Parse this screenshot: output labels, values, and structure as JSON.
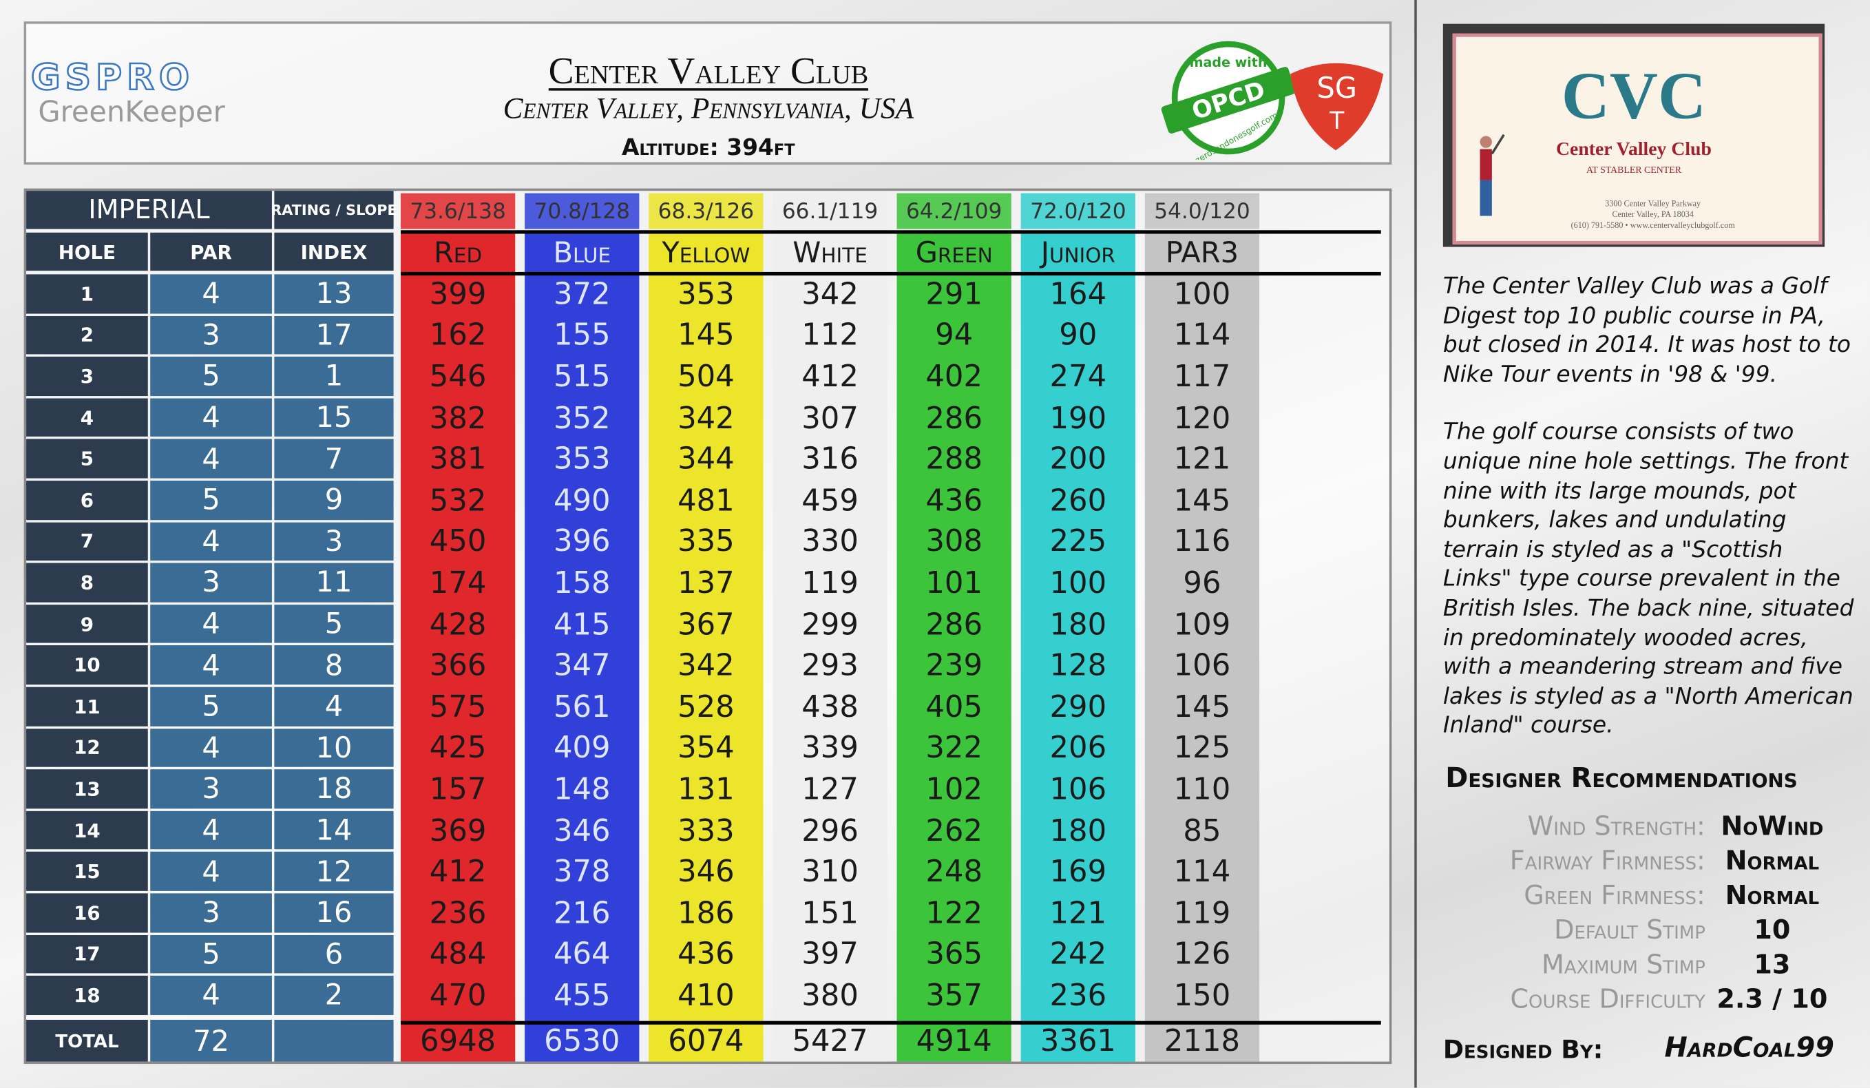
{
  "header": {
    "logo_title": "GSPRO",
    "logo_subtitle": "GreenKeeper",
    "title": "Center Valley Club",
    "location": "Center Valley, Pennsylvania, USA",
    "altitude": "Altitude: 394ft",
    "badge_top": "made with",
    "badge_main": "OPCD",
    "badge_url": "zerosandonesgolf.com",
    "sgt_top": "SG",
    "sgt_bottom": "T"
  },
  "table": {
    "system": "IMPERIAL",
    "rating_label": "RATING / SLOPE",
    "columns": [
      "HOLE",
      "PAR",
      "INDEX"
    ],
    "total_label": "TOTAL",
    "par_total": 72,
    "holes": [
      {
        "hole": 1,
        "par": 4,
        "index": 13
      },
      {
        "hole": 2,
        "par": 3,
        "index": 17
      },
      {
        "hole": 3,
        "par": 5,
        "index": 1
      },
      {
        "hole": 4,
        "par": 4,
        "index": 15
      },
      {
        "hole": 5,
        "par": 4,
        "index": 7
      },
      {
        "hole": 6,
        "par": 5,
        "index": 9
      },
      {
        "hole": 7,
        "par": 4,
        "index": 3
      },
      {
        "hole": 8,
        "par": 3,
        "index": 11
      },
      {
        "hole": 9,
        "par": 4,
        "index": 5
      },
      {
        "hole": 10,
        "par": 4,
        "index": 8
      },
      {
        "hole": 11,
        "par": 5,
        "index": 4
      },
      {
        "hole": 12,
        "par": 4,
        "index": 10
      },
      {
        "hole": 13,
        "par": 3,
        "index": 18
      },
      {
        "hole": 14,
        "par": 4,
        "index": 14
      },
      {
        "hole": 15,
        "par": 4,
        "index": 12
      },
      {
        "hole": 16,
        "par": 3,
        "index": 16
      },
      {
        "hole": 17,
        "par": 5,
        "index": 6
      },
      {
        "hole": 18,
        "par": 4,
        "index": 2
      }
    ],
    "tees": [
      {
        "name": "Red",
        "rating": "73.6/138",
        "color": "#e0282c",
        "text_color": "#1a1a1a",
        "yards": [
          399,
          162,
          546,
          382,
          381,
          532,
          450,
          174,
          428,
          366,
          575,
          425,
          157,
          369,
          412,
          236,
          484,
          470
        ],
        "total": 6948
      },
      {
        "name": "Blue",
        "rating": "70.8/128",
        "color": "#3040d8",
        "text_color": "#dfe6ff",
        "yards": [
          372,
          155,
          515,
          352,
          353,
          490,
          396,
          158,
          415,
          347,
          561,
          409,
          148,
          346,
          378,
          216,
          464,
          455
        ],
        "total": 6530
      },
      {
        "name": "Yellow",
        "rating": "68.3/126",
        "color": "#ece52a",
        "text_color": "#1a1a1a",
        "yards": [
          353,
          145,
          504,
          342,
          344,
          481,
          335,
          137,
          367,
          342,
          528,
          354,
          131,
          333,
          346,
          186,
          436,
          410
        ],
        "total": 6074
      },
      {
        "name": "White",
        "rating": "66.1/119",
        "color": "#efefef",
        "text_color": "#1a1a1a",
        "yards": [
          342,
          112,
          412,
          307,
          316,
          459,
          330,
          119,
          299,
          293,
          438,
          339,
          127,
          296,
          310,
          151,
          397,
          380
        ],
        "total": 5427
      },
      {
        "name": "Green",
        "rating": "64.2/109",
        "color": "#3cc43a",
        "text_color": "#1a1a1a",
        "yards": [
          291,
          94,
          402,
          286,
          288,
          436,
          308,
          101,
          286,
          239,
          405,
          322,
          102,
          262,
          248,
          122,
          365,
          357
        ],
        "total": 4914
      },
      {
        "name": "Junior",
        "rating": "72.0/120",
        "color": "#35cfcf",
        "text_color": "#1a1a1a",
        "yards": [
          164,
          90,
          274,
          190,
          200,
          260,
          225,
          100,
          180,
          128,
          290,
          206,
          106,
          180,
          169,
          121,
          242,
          236
        ],
        "total": 3361
      },
      {
        "name": "PAR3",
        "rating": "54.0/120",
        "color": "#c4c4c4",
        "text_color": "#1a1a1a",
        "yards": [
          100,
          114,
          117,
          120,
          121,
          145,
          116,
          96,
          109,
          106,
          145,
          125,
          110,
          85,
          114,
          119,
          126,
          150
        ],
        "total": 2118
      }
    ]
  },
  "card": {
    "title": "Center Valley Club",
    "subtitle": "AT STABLER CENTER",
    "address": [
      "3300 Center Valley Parkway",
      "Center Valley, PA 18034",
      "(610) 791-5580 • www.centervalleyclubgolf.com"
    ]
  },
  "description": [
    "The Center Valley Club was a Golf Digest top 10 public course in PA, but closed in 2014.  It was host to to Nike Tour events in '98 & '99.",
    "The golf course consists of two unique nine hole settings. The front nine with its large mounds, pot bunkers, lakes and undulating terrain is styled as a \"Scottish Links\" type course prevalent in the British Isles. The back nine, situated in predominately wooded acres, with a meandering stream and five lakes is styled as a \"North American Inland\" course."
  ],
  "recommendations": {
    "title": "Designer Recommendations",
    "items": [
      {
        "label": "Wind Strength:",
        "value": "NoWind"
      },
      {
        "label": "Fairway Firmness:",
        "value": "Normal"
      },
      {
        "label": "Green Firmness:",
        "value": "Normal"
      },
      {
        "label": "Default Stimp",
        "value": 10
      },
      {
        "label": "Maximum Stimp",
        "value": 13
      },
      {
        "label": "Course Difficulty",
        "value": "2.3 / 10"
      }
    ]
  },
  "footer": {
    "label": "Designed By:",
    "designer": "HardCoal99"
  }
}
